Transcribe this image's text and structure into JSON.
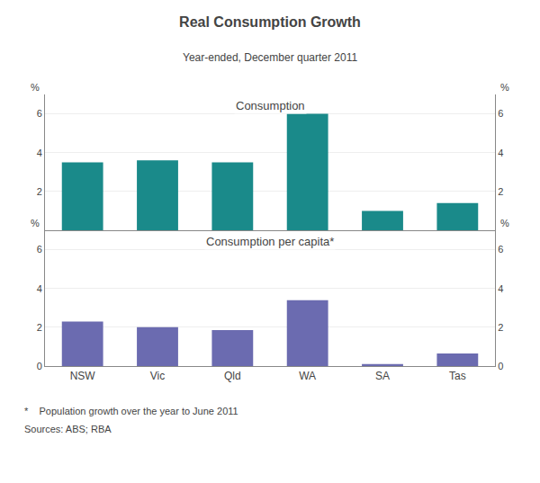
{
  "title": "Real Consumption Growth",
  "subtitle": "Year-ended, December quarter 2011",
  "annotations": [
    "*    Population growth over the year to June 2011",
    "Sources: ABS; RBA"
  ],
  "chart_data": [
    {
      "type": "bar",
      "title": "Consumption",
      "categories": [
        "NSW",
        "Vic",
        "Qld",
        "WA",
        "SA",
        "Tas"
      ],
      "values": [
        3.5,
        3.6,
        3.5,
        6.0,
        1.0,
        1.4
      ],
      "color": "#1a8a8a",
      "ylim": [
        0,
        7
      ],
      "yticks": [
        2,
        4,
        6
      ],
      "y2lim": [
        0,
        7
      ],
      "y2ticks": [
        2,
        4,
        6
      ],
      "ylabel": "%",
      "y2label": "%",
      "grid": true,
      "tick_labels": "y"
    },
    {
      "type": "bar",
      "title": "Consumption per capita*",
      "categories": [
        "NSW",
        "Vic",
        "Qld",
        "WA",
        "SA",
        "Tas"
      ],
      "values": [
        2.3,
        2.0,
        1.85,
        3.4,
        0.1,
        0.65
      ],
      "color": "#6b6bb0",
      "ylim": [
        0,
        7
      ],
      "yticks": [
        0,
        2,
        4,
        6
      ],
      "y2lim": [
        0,
        7
      ],
      "y2ticks": [
        0,
        2,
        4,
        6
      ],
      "ylabel": "%",
      "y2label": "%",
      "grid": true
    }
  ]
}
